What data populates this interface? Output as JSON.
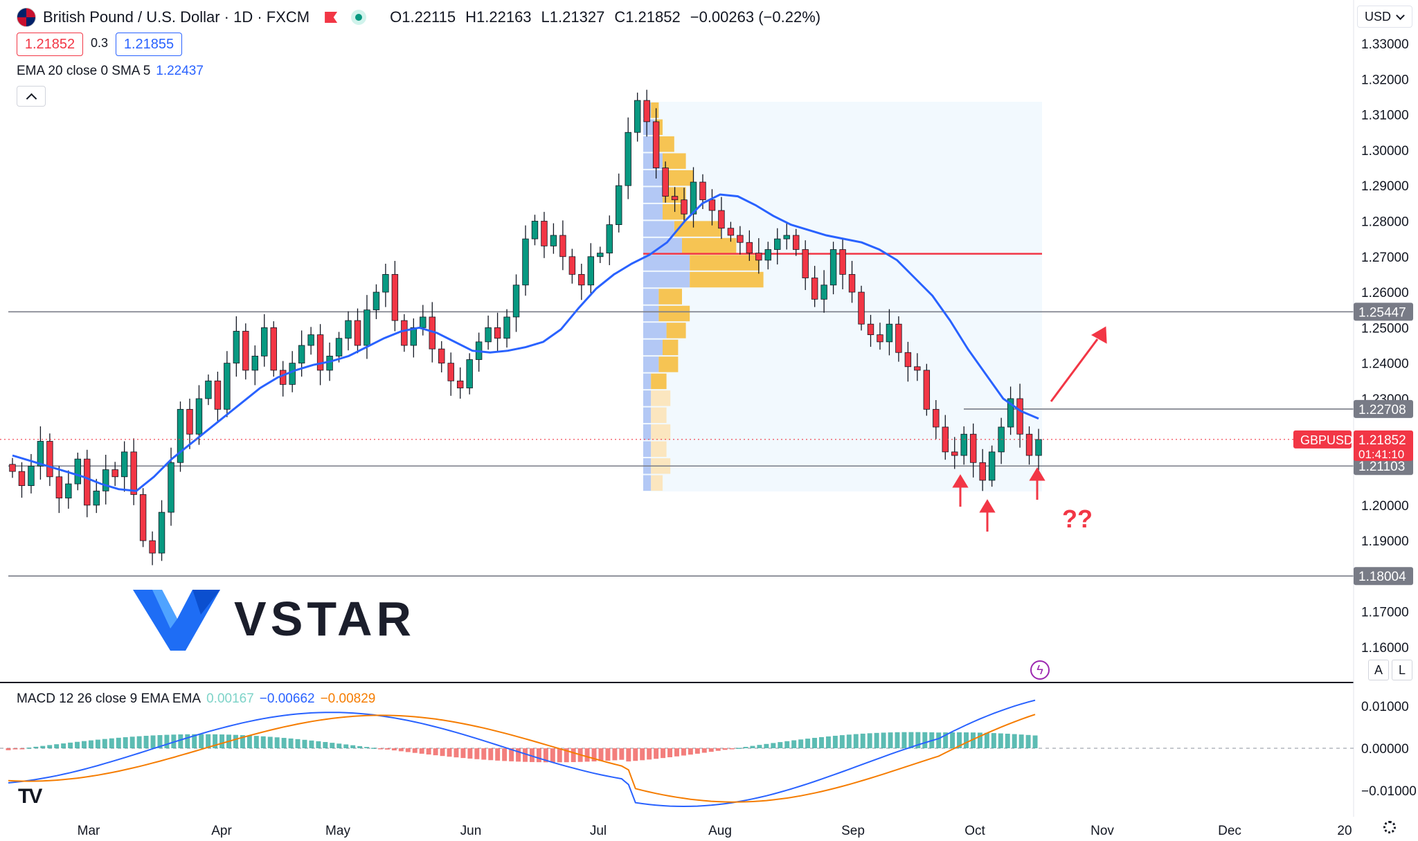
{
  "header": {
    "title": "British Pound / U.S. Dollar · 1D · FXCM",
    "ohlc": {
      "open": "O1.22115",
      "high": "H1.22163",
      "low": "L1.21327",
      "close": "C1.21852",
      "change": "−0.00263 (−0.22%)"
    },
    "sell_price": "1.21852",
    "spread": "0.3",
    "buy_price": "1.21855",
    "currency": "USD"
  },
  "indicators": {
    "ema_label": "EMA 20 close 0 SMA 5",
    "ema_value": "1.22437",
    "macd_label": "MACD 12 26 close 9 EMA EMA",
    "macd_hist": "0.00167",
    "macd_line": "−0.00662",
    "macd_signal": "−0.00829"
  },
  "brand": {
    "logo_text": "VSTAR",
    "watermark": "TV"
  },
  "buttons": {
    "auto": "A",
    "log": "L"
  },
  "annotations": {
    "question": "??",
    "ticker_tag": "GBPUSD",
    "countdown": "01:41:10"
  },
  "colors": {
    "up": "#089981",
    "down": "#f23645",
    "ema": "#2962ff",
    "macd": "#2962ff",
    "signal": "#f57c00",
    "poc": "#f23645",
    "level": "#787b86"
  },
  "chart_data": {
    "type": "candlestick",
    "y_ticks": [
      "1.33000",
      "1.32000",
      "1.31000",
      "1.30000",
      "1.29000",
      "1.28000",
      "1.27000",
      "1.26000",
      "1.25000",
      "1.24000",
      "1.23000",
      "1.20000",
      "1.19000",
      "1.17000",
      "1.16000"
    ],
    "y_range": [
      1.155,
      1.3375
    ],
    "x_ticks": [
      "Mar",
      "Apr",
      "May",
      "Jun",
      "Jul",
      "Aug",
      "Sep",
      "Oct",
      "Nov",
      "Dec",
      "20"
    ],
    "levels": [
      {
        "value": 1.25447,
        "label": "1.25447"
      },
      {
        "value": 1.22708,
        "label": "1.22708"
      },
      {
        "value": 1.21103,
        "label": "1.21103"
      },
      {
        "value": 1.18004,
        "label": "1.18004"
      }
    ],
    "poc_value": 1.2708,
    "last_price": {
      "value": 1.21852,
      "label": "1.21852"
    },
    "macd_ticks": [
      "0.01000",
      "0.00000",
      "−0.01000"
    ],
    "macd_range": [
      -0.0148,
      0.0128
    ],
    "candles_close_path": [
      1.2095,
      1.2055,
      1.211,
      1.218,
      1.208,
      1.202,
      1.206,
      1.213,
      1.2,
      1.204,
      1.21,
      1.208,
      1.215,
      1.203,
      1.19,
      1.1865,
      1.198,
      1.212,
      1.227,
      1.22,
      1.23,
      1.235,
      1.227,
      1.24,
      1.249,
      1.238,
      1.242,
      1.25,
      1.238,
      1.234,
      1.24,
      1.245,
      1.248,
      1.238,
      1.242,
      1.247,
      1.252,
      1.245,
      1.255,
      1.26,
      1.265,
      1.252,
      1.245,
      1.25,
      1.253,
      1.244,
      1.24,
      1.235,
      1.233,
      1.241,
      1.246,
      1.25,
      1.247,
      1.253,
      1.262,
      1.275,
      1.28,
      1.273,
      1.276,
      1.27,
      1.265,
      1.262,
      1.27,
      1.271,
      1.279,
      1.29,
      1.305,
      1.314,
      1.308,
      1.295,
      1.287,
      1.286,
      1.282,
      1.291,
      1.286,
      1.283,
      1.278,
      1.276,
      1.274,
      1.271,
      1.269,
      1.272,
      1.275,
      1.276,
      1.272,
      1.264,
      1.258,
      1.262,
      1.272,
      1.265,
      1.26,
      1.251,
      1.248,
      1.246,
      1.251,
      1.243,
      1.239,
      1.238,
      1.227,
      1.222,
      1.215,
      1.214,
      1.22,
      1.212,
      1.207,
      1.215,
      1.222,
      1.23,
      1.22,
      1.214,
      1.2185
    ],
    "ema_path": [
      1.214,
      1.2125,
      1.211,
      1.2095,
      1.208,
      1.206,
      1.2045,
      1.204,
      1.208,
      1.213,
      1.217,
      1.221,
      1.225,
      1.229,
      1.233,
      1.236,
      1.238,
      1.2395,
      1.2405,
      1.242,
      1.2445,
      1.247,
      1.249,
      1.25,
      1.2485,
      1.246,
      1.2435,
      1.243,
      1.2435,
      1.2445,
      1.246,
      1.2495,
      1.2555,
      1.261,
      1.265,
      1.268,
      1.2705,
      1.274,
      1.28,
      1.285,
      1.2875,
      1.287,
      1.2845,
      1.2815,
      1.279,
      1.2775,
      1.276,
      1.275,
      1.274,
      1.272,
      1.269,
      1.264,
      1.259,
      1.252,
      1.244,
      1.237,
      1.23,
      1.2265,
      1.2244
    ]
  }
}
